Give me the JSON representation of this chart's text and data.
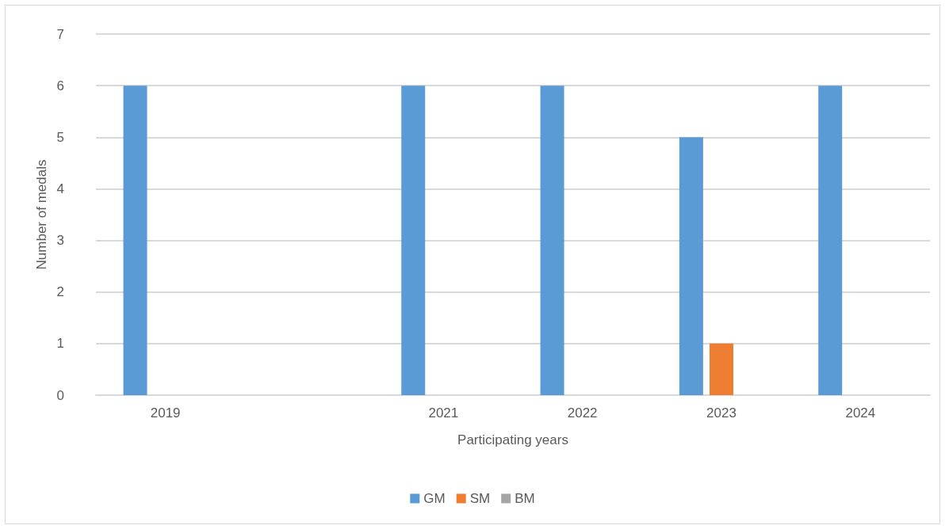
{
  "chart_data": {
    "type": "bar",
    "xlabel": "Participating years",
    "ylabel": "Number of medals",
    "categories": [
      "2019",
      null,
      "2021",
      "2022",
      "2023",
      "2024"
    ],
    "series": [
      {
        "name": "GM",
        "color": "#5b9bd5",
        "values": [
          6,
          null,
          6,
          6,
          5,
          6
        ]
      },
      {
        "name": "SM",
        "color": "#ed7d31",
        "values": [
          0,
          null,
          0,
          0,
          1,
          0
        ]
      },
      {
        "name": "BM",
        "color": "#a5a5a5",
        "values": [
          0,
          null,
          0,
          0,
          0,
          0
        ]
      }
    ],
    "ylim": [
      0,
      7
    ],
    "yticks": [
      0,
      1,
      2,
      3,
      4,
      5,
      6,
      7
    ],
    "grid": "y",
    "legend": "bottom"
  }
}
